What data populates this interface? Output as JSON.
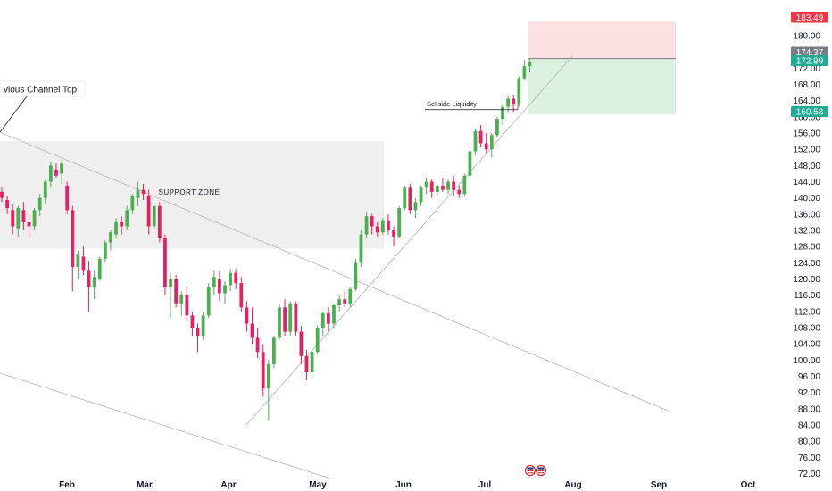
{
  "chart_data": {
    "type": "candlestick",
    "x_axis": {
      "ticks": [
        "Feb",
        "Mar",
        "Apr",
        "May",
        "Jun",
        "Jul",
        "Aug",
        "Sep",
        "Oct"
      ]
    },
    "y_axis": {
      "range": [
        71,
        184
      ],
      "ticks": [
        "72.00",
        "76.00",
        "80.00",
        "84.00",
        "88.00",
        "92.00",
        "96.00",
        "100.00",
        "104.00",
        "108.00",
        "112.00",
        "116.00",
        "120.00",
        "124.00",
        "128.00",
        "132.00",
        "136.00",
        "140.00",
        "144.00",
        "148.00",
        "152.00",
        "156.00",
        "160.00",
        "164.00",
        "168.00",
        "172.00",
        "176.00",
        "180.00"
      ]
    },
    "price_badges": [
      {
        "label": "183.49",
        "value": 183.49,
        "color": "#f23645"
      },
      {
        "label": "174.37",
        "value": 174.37,
        "color": "#787b86"
      },
      {
        "label": "172.99",
        "value": 172.99,
        "color": "#22ab94"
      },
      {
        "label": "160.58",
        "value": 160.58,
        "color": "#22ab94"
      }
    ],
    "annotations": {
      "support_zone": {
        "label": "SUPPORT ZONE",
        "range": [
          127.5,
          154.0
        ]
      },
      "channel_top": {
        "label": "vious Channel Top"
      },
      "sellside": {
        "label": "Sellside Liquidity",
        "value": 161.8
      }
    },
    "position": {
      "entry": 174.37,
      "stop": 183.49,
      "target": 160.58,
      "stop_color": "#fde0e2",
      "target_color": "#dcf1de"
    },
    "colors": {
      "up": "#4caf50",
      "down": "#e91e63",
      "zone": "#e8e8e8",
      "trendline": "#b2b5be"
    },
    "candles_ohlc": [
      [
        141.5,
        142.5,
        139.0,
        140.0
      ],
      [
        139.5,
        140.5,
        136.0,
        137.5
      ],
      [
        137.0,
        138.5,
        131.0,
        133.0
      ],
      [
        132.5,
        138.0,
        130.5,
        137.5
      ],
      [
        137.0,
        139.0,
        132.0,
        134.0
      ],
      [
        134.0,
        136.0,
        130.0,
        133.0
      ],
      [
        133.0,
        137.5,
        132.0,
        137.0
      ],
      [
        137.0,
        141.0,
        135.5,
        140.0
      ],
      [
        140.0,
        144.5,
        138.5,
        144.0
      ],
      [
        144.0,
        149.0,
        142.5,
        148.0
      ],
      [
        147.0,
        148.5,
        145.0,
        145.5
      ],
      [
        146.0,
        149.5,
        143.5,
        148.5
      ],
      [
        143.0,
        144.0,
        136.0,
        137.0
      ],
      [
        137.0,
        138.0,
        117.0,
        123.0
      ],
      [
        123.0,
        127.0,
        120.0,
        126.0
      ],
      [
        125.5,
        128.0,
        121.0,
        122.0
      ],
      [
        122.0,
        124.5,
        112.0,
        118.0
      ],
      [
        118.0,
        122.0,
        115.0,
        120.5
      ],
      [
        120.0,
        125.5,
        119.5,
        125.0
      ],
      [
        125.0,
        129.5,
        124.0,
        129.0
      ],
      [
        129.0,
        132.0,
        127.0,
        131.5
      ],
      [
        131.0,
        135.0,
        130.0,
        134.0
      ],
      [
        134.0,
        135.5,
        131.0,
        133.0
      ],
      [
        133.0,
        138.0,
        132.0,
        137.0
      ],
      [
        137.0,
        141.0,
        136.0,
        140.5
      ],
      [
        140.0,
        144.0,
        138.0,
        142.0
      ],
      [
        142.0,
        143.5,
        139.5,
        141.0
      ],
      [
        140.5,
        142.0,
        131.0,
        133.0
      ],
      [
        133.0,
        138.5,
        132.0,
        138.0
      ],
      [
        138.0,
        139.0,
        129.0,
        130.0
      ],
      [
        130.0,
        131.0,
        116.0,
        118.0
      ],
      [
        118.0,
        121.5,
        110.5,
        120.0
      ],
      [
        120.0,
        121.0,
        113.0,
        114.0
      ],
      [
        114.0,
        117.0,
        111.0,
        116.0
      ],
      [
        116.0,
        118.5,
        109.5,
        111.0
      ],
      [
        111.0,
        112.0,
        106.0,
        108.0
      ],
      [
        108.0,
        109.0,
        102.0,
        106.0
      ],
      [
        106.0,
        112.0,
        105.0,
        111.0
      ],
      [
        111.0,
        119.0,
        110.5,
        118.0
      ],
      [
        118.0,
        122.0,
        116.0,
        120.5
      ],
      [
        120.0,
        122.0,
        114.5,
        116.5
      ],
      [
        116.5,
        119.5,
        114.0,
        118.5
      ],
      [
        118.5,
        122.5,
        117.0,
        121.5
      ],
      [
        121.5,
        122.5,
        117.5,
        119.0
      ],
      [
        119.0,
        120.5,
        112.0,
        113.0
      ],
      [
        113.0,
        114.5,
        107.0,
        109.0
      ],
      [
        109.0,
        113.0,
        104.0,
        105.5
      ],
      [
        105.5,
        108.0,
        100.5,
        102.0
      ],
      [
        102.0,
        104.0,
        91.0,
        93.0
      ],
      [
        93.0,
        100.0,
        85.0,
        99.0
      ],
      [
        99.0,
        106.0,
        98.0,
        105.5
      ],
      [
        105.5,
        114.0,
        105.0,
        113.0
      ],
      [
        113.0,
        115.0,
        106.0,
        107.0
      ],
      [
        107.0,
        114.5,
        106.0,
        114.0
      ],
      [
        114.0,
        114.5,
        106.0,
        107.0
      ],
      [
        107.0,
        108.5,
        99.0,
        101.0
      ],
      [
        101.0,
        102.5,
        95.0,
        97.0
      ],
      [
        97.0,
        103.0,
        96.0,
        102.0
      ],
      [
        102.0,
        108.5,
        101.5,
        108.0
      ],
      [
        108.0,
        112.0,
        106.0,
        111.5
      ],
      [
        111.5,
        113.0,
        107.0,
        109.0
      ],
      [
        109.0,
        114.0,
        108.0,
        113.5
      ],
      [
        113.5,
        116.0,
        112.0,
        115.0
      ],
      [
        115.0,
        117.0,
        113.0,
        114.0
      ],
      [
        114.0,
        118.0,
        113.0,
        117.5
      ],
      [
        117.5,
        125.0,
        117.0,
        124.0
      ],
      [
        124.0,
        132.0,
        123.0,
        131.0
      ],
      [
        131.0,
        136.5,
        130.0,
        135.5
      ],
      [
        135.5,
        136.0,
        131.0,
        133.0
      ],
      [
        133.0,
        134.0,
        130.5,
        131.5
      ],
      [
        131.5,
        135.0,
        131.0,
        134.5
      ],
      [
        134.5,
        136.0,
        131.0,
        132.0
      ],
      [
        132.0,
        133.0,
        128.0,
        130.5
      ],
      [
        130.5,
        138.0,
        130.0,
        137.5
      ],
      [
        137.5,
        143.0,
        137.0,
        142.5
      ],
      [
        142.5,
        143.5,
        136.0,
        137.0
      ],
      [
        137.0,
        140.0,
        135.0,
        139.0
      ],
      [
        139.0,
        143.0,
        138.0,
        142.5
      ],
      [
        142.5,
        145.0,
        141.0,
        144.0
      ],
      [
        144.0,
        144.5,
        140.0,
        141.5
      ],
      [
        141.5,
        143.5,
        140.5,
        143.0
      ],
      [
        143.0,
        145.0,
        141.5,
        142.0
      ],
      [
        142.0,
        144.5,
        141.0,
        144.0
      ],
      [
        144.0,
        145.5,
        140.5,
        142.0
      ],
      [
        142.0,
        143.0,
        140.0,
        141.0
      ],
      [
        141.0,
        146.0,
        140.5,
        145.5
      ],
      [
        145.5,
        152.0,
        145.0,
        151.5
      ],
      [
        151.5,
        157.0,
        150.5,
        156.5
      ],
      [
        156.5,
        158.0,
        152.5,
        153.5
      ],
      [
        153.5,
        156.0,
        151.0,
        152.0
      ],
      [
        152.0,
        156.0,
        150.0,
        155.5
      ],
      [
        155.5,
        160.0,
        155.0,
        159.5
      ],
      [
        159.5,
        163.0,
        158.0,
        162.5
      ],
      [
        162.5,
        165.0,
        161.0,
        164.5
      ],
      [
        164.5,
        165.5,
        161.0,
        163.0
      ],
      [
        163.0,
        170.0,
        162.5,
        169.5
      ],
      [
        169.5,
        174.0,
        169.0,
        172.5
      ],
      [
        172.5,
        174.5,
        171.0,
        173.5
      ]
    ]
  }
}
